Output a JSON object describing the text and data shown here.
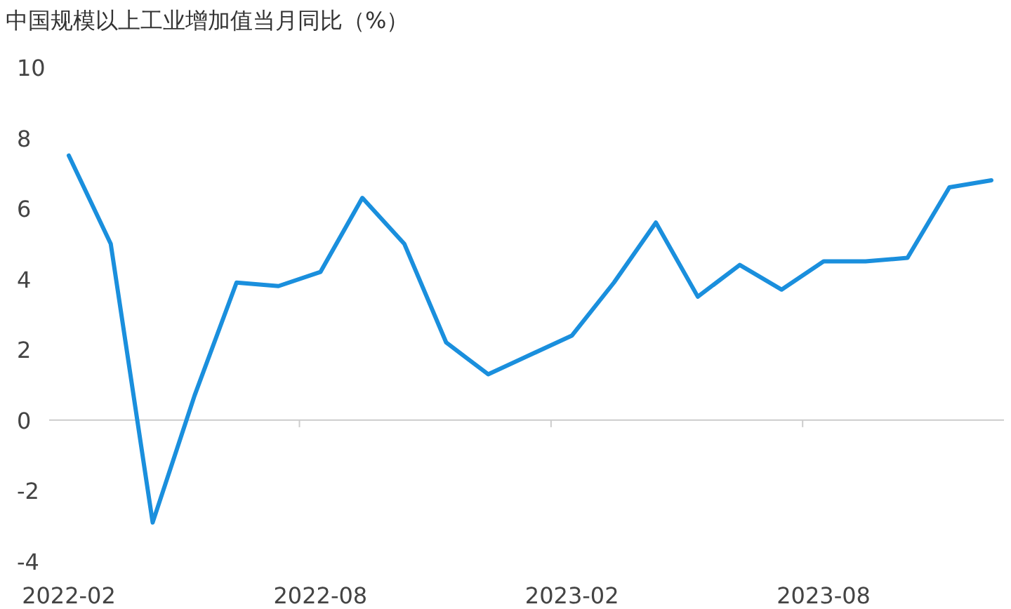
{
  "chart_data": {
    "type": "line",
    "title": "中国规模以上工业增加值当月同比（%）",
    "categories": [
      "2022-02",
      null,
      null,
      null,
      null,
      null,
      "2022-08",
      null,
      null,
      null,
      null,
      null,
      "2023-02",
      null,
      null,
      null,
      null,
      null,
      "2023-08",
      null,
      null,
      null,
      null
    ],
    "series": [
      {
        "color": "#1a8fdd",
        "values": [
          7.5,
          5.0,
          -2.9,
          0.7,
          3.9,
          3.8,
          4.2,
          6.3,
          5.0,
          2.2,
          1.3,
          null,
          2.4,
          3.9,
          5.6,
          3.5,
          4.4,
          3.7,
          4.5,
          4.5,
          4.6,
          6.6,
          6.8
        ]
      }
    ],
    "ylim": [
      -4,
      10
    ],
    "yticks": [
      -4,
      -2,
      0,
      2,
      4,
      6,
      8,
      10
    ],
    "marker": "none",
    "line_style": "solid"
  }
}
